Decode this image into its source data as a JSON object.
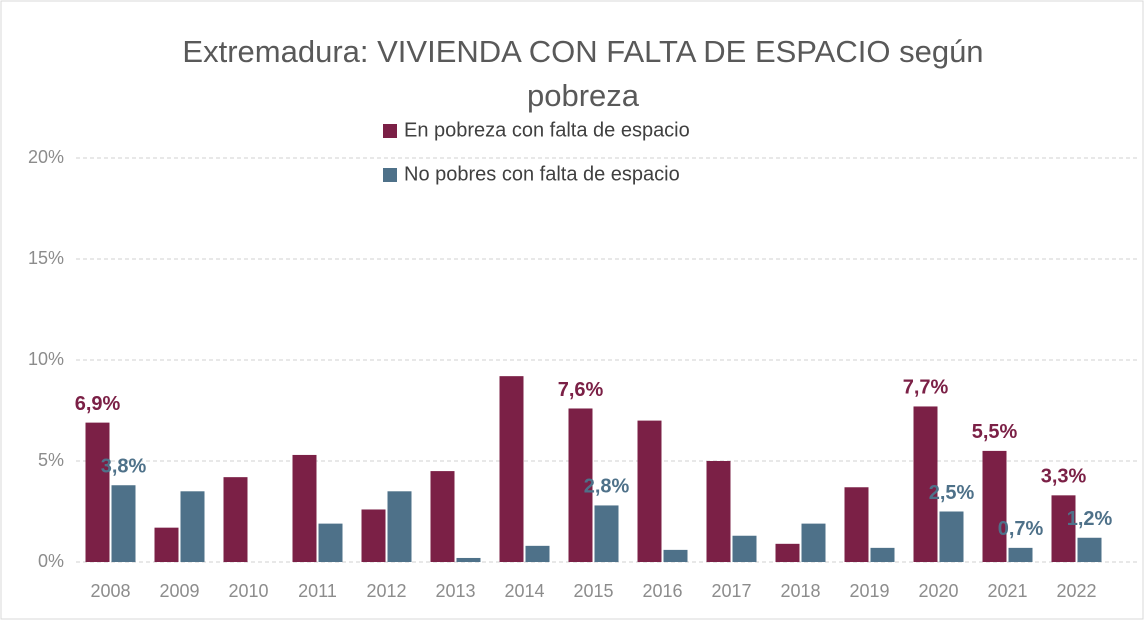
{
  "chart_data": {
    "type": "bar",
    "title": "Extremadura: VIVIENDA CON FALTA DE ESPACIO según pobreza",
    "categories": [
      "2008",
      "2009",
      "2010",
      "2011",
      "2012",
      "2013",
      "2014",
      "2015",
      "2016",
      "2017",
      "2018",
      "2019",
      "2020",
      "2021",
      "2022"
    ],
    "series": [
      {
        "name": "En pobreza con falta de espacio",
        "color": "#7b2046",
        "values": [
          6.9,
          1.7,
          4.2,
          5.3,
          2.6,
          4.5,
          9.2,
          7.6,
          7.0,
          5.0,
          0.9,
          3.7,
          7.7,
          5.5,
          3.3
        ],
        "value_labels": [
          "6,9%",
          null,
          null,
          null,
          null,
          null,
          null,
          "7,6%",
          null,
          null,
          null,
          null,
          "7,7%",
          "5,5%",
          "3,3%"
        ]
      },
      {
        "name": "No pobres con falta de espacio",
        "color": "#4e7189",
        "values": [
          3.8,
          3.5,
          null,
          1.9,
          3.5,
          0.2,
          0.8,
          2.8,
          0.6,
          1.3,
          1.9,
          0.7,
          2.5,
          0.7,
          1.2
        ],
        "value_labels": [
          "3,8%",
          null,
          null,
          null,
          null,
          null,
          null,
          "2,8%",
          null,
          null,
          null,
          null,
          "2,5%",
          "0,7%",
          "1,2%"
        ]
      }
    ],
    "ylim": [
      0,
      20
    ],
    "yticks": [
      {
        "value": 0,
        "label": "0%"
      },
      {
        "value": 5,
        "label": "5%"
      },
      {
        "value": 10,
        "label": "10%"
      },
      {
        "value": 15,
        "label": "15%"
      },
      {
        "value": 20,
        "label": "20%"
      }
    ],
    "grid": true,
    "legend": "top"
  }
}
